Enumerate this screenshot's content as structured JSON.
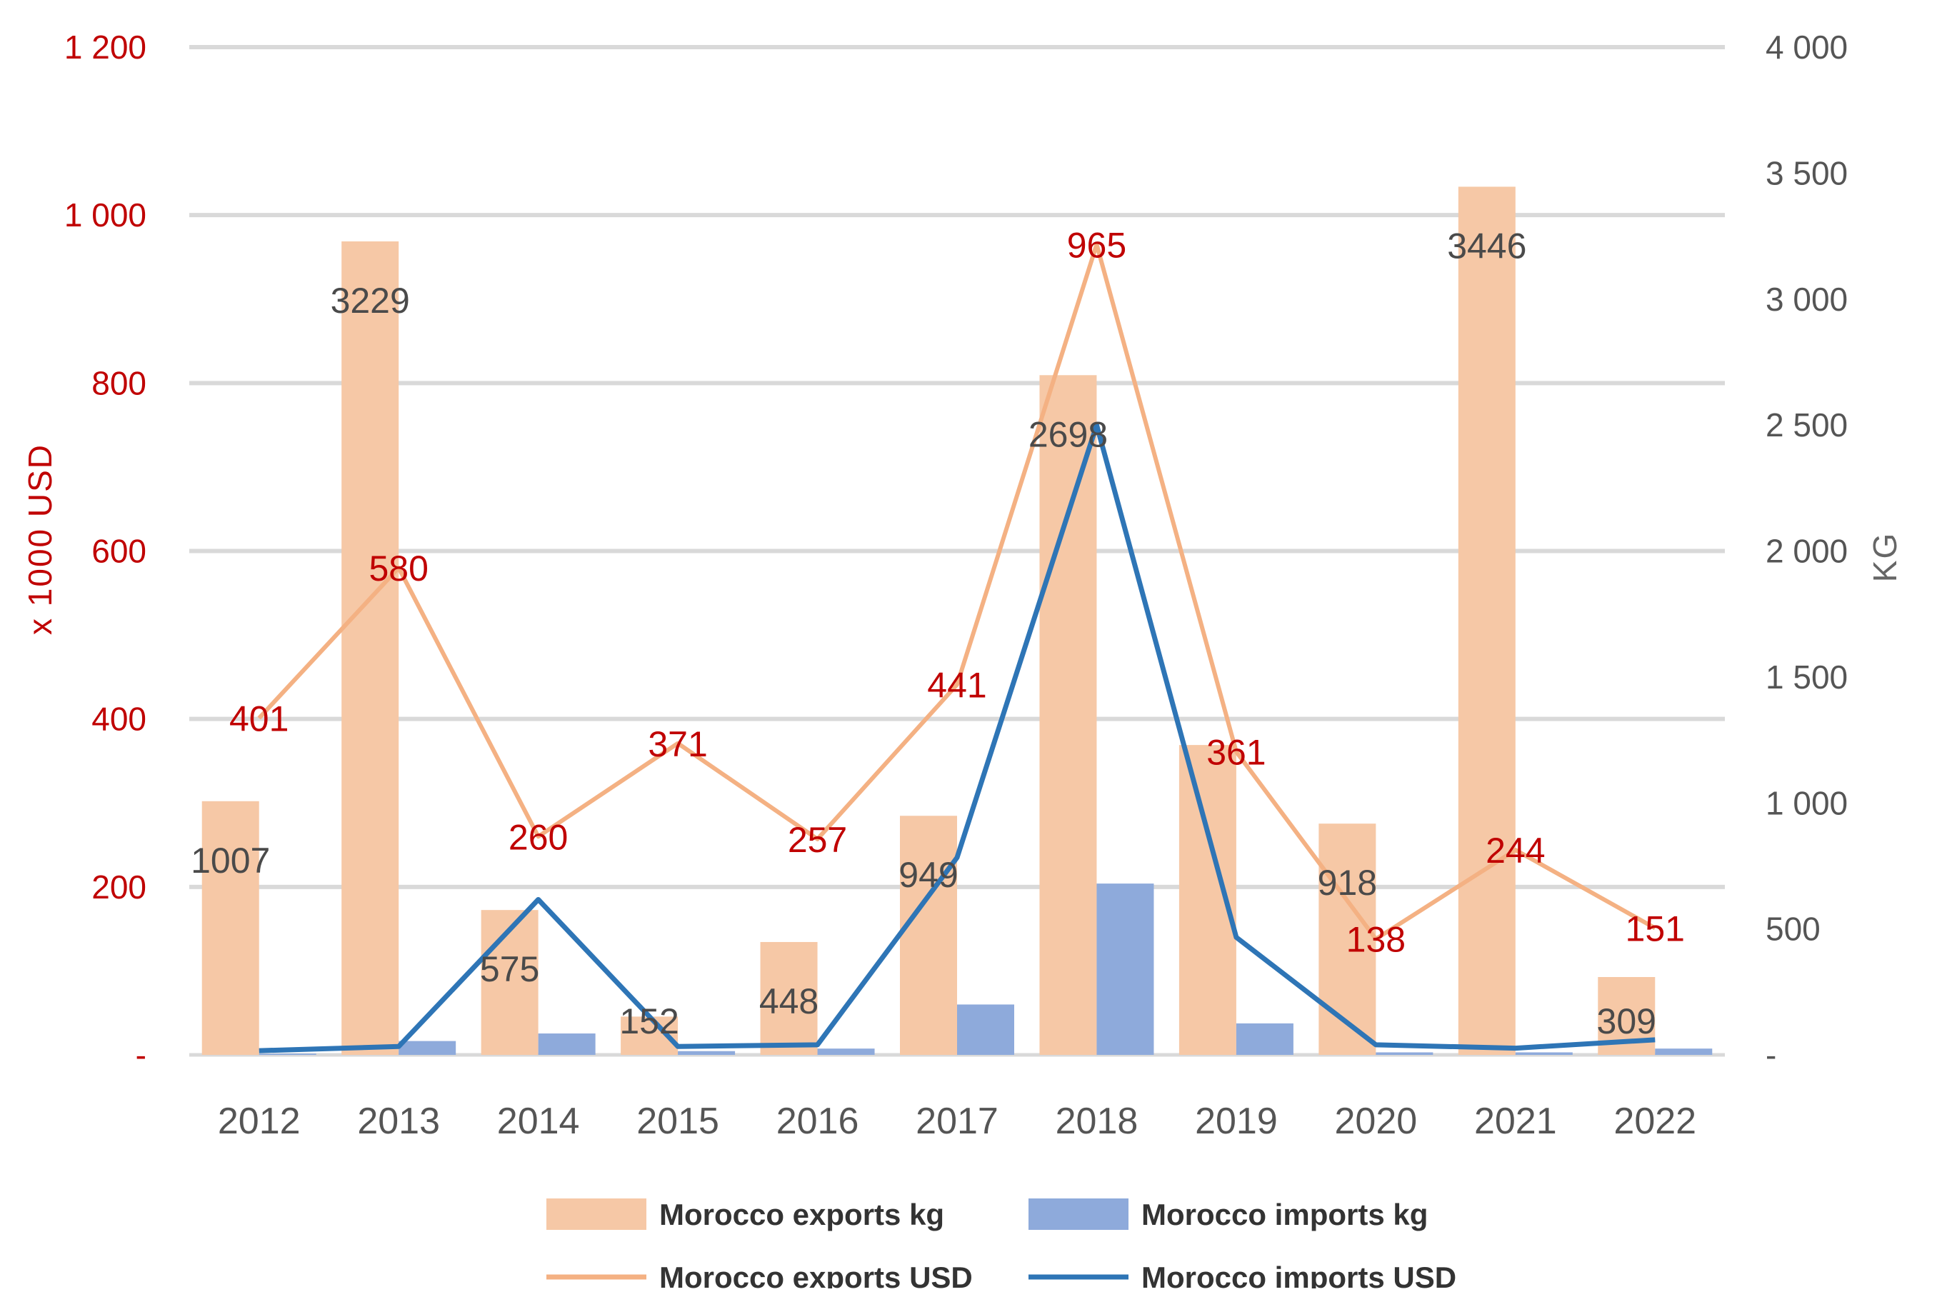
{
  "chart_data": {
    "type": "bar",
    "title": "",
    "categories": [
      "2012",
      "2013",
      "2014",
      "2015",
      "2016",
      "2017",
      "2018",
      "2019",
      "2020",
      "2021",
      "2022"
    ],
    "left_axis": {
      "label": "x 1000 USD",
      "min": 0,
      "max": 1200,
      "ticks": [
        0,
        200,
        400,
        600,
        800,
        1000,
        1200
      ],
      "tick_labels": [
        "-",
        "200",
        "400",
        "600",
        "800",
        "1 000",
        "1 200"
      ]
    },
    "right_axis": {
      "label": "KG",
      "min": 0,
      "max": 4000,
      "ticks": [
        0,
        500,
        1000,
        1500,
        2000,
        2500,
        3000,
        3500,
        4000
      ],
      "tick_labels": [
        "-",
        "500",
        "1 000",
        "1 500",
        "2 000",
        "2 500",
        "3 000",
        "3 500",
        "4 000"
      ]
    },
    "grid": true,
    "legend_position": "bottom",
    "series": [
      {
        "name": "Morocco exports kg",
        "kind": "bar",
        "axis": "right",
        "color": "#f6c8a6",
        "values": [
          1007,
          3229,
          575,
          152,
          448,
          949,
          2698,
          1230,
          918,
          3446,
          309
        ],
        "data_labels": [
          "1007",
          "3229",
          "575",
          "152",
          "448",
          "949",
          "2698",
          "",
          "918",
          "3446",
          "309"
        ]
      },
      {
        "name": "Morocco imports kg",
        "kind": "bar",
        "axis": "right",
        "color": "#8eaadb",
        "values": [
          5,
          55,
          85,
          15,
          25,
          200,
          680,
          125,
          10,
          10,
          25
        ]
      },
      {
        "name": "Morocco exports USD",
        "kind": "line",
        "axis": "left",
        "color": "#f4b183",
        "values": [
          401,
          580,
          260,
          371,
          257,
          441,
          965,
          361,
          138,
          244,
          151
        ],
        "data_labels": [
          "401",
          "580",
          "260",
          "371",
          "257",
          "441",
          "965",
          "361",
          "138",
          "244",
          "151"
        ]
      },
      {
        "name": "Morocco imports USD",
        "kind": "line",
        "axis": "left",
        "color": "#2e75b6",
        "values": [
          5,
          10,
          185,
          10,
          12,
          235,
          750,
          140,
          12,
          8,
          18
        ]
      }
    ],
    "label_color_usd": "#c00000",
    "axis_label_color_left": "#c00000",
    "axis_label_color_right": "#666666",
    "grid_color": "#d9d9d9"
  }
}
